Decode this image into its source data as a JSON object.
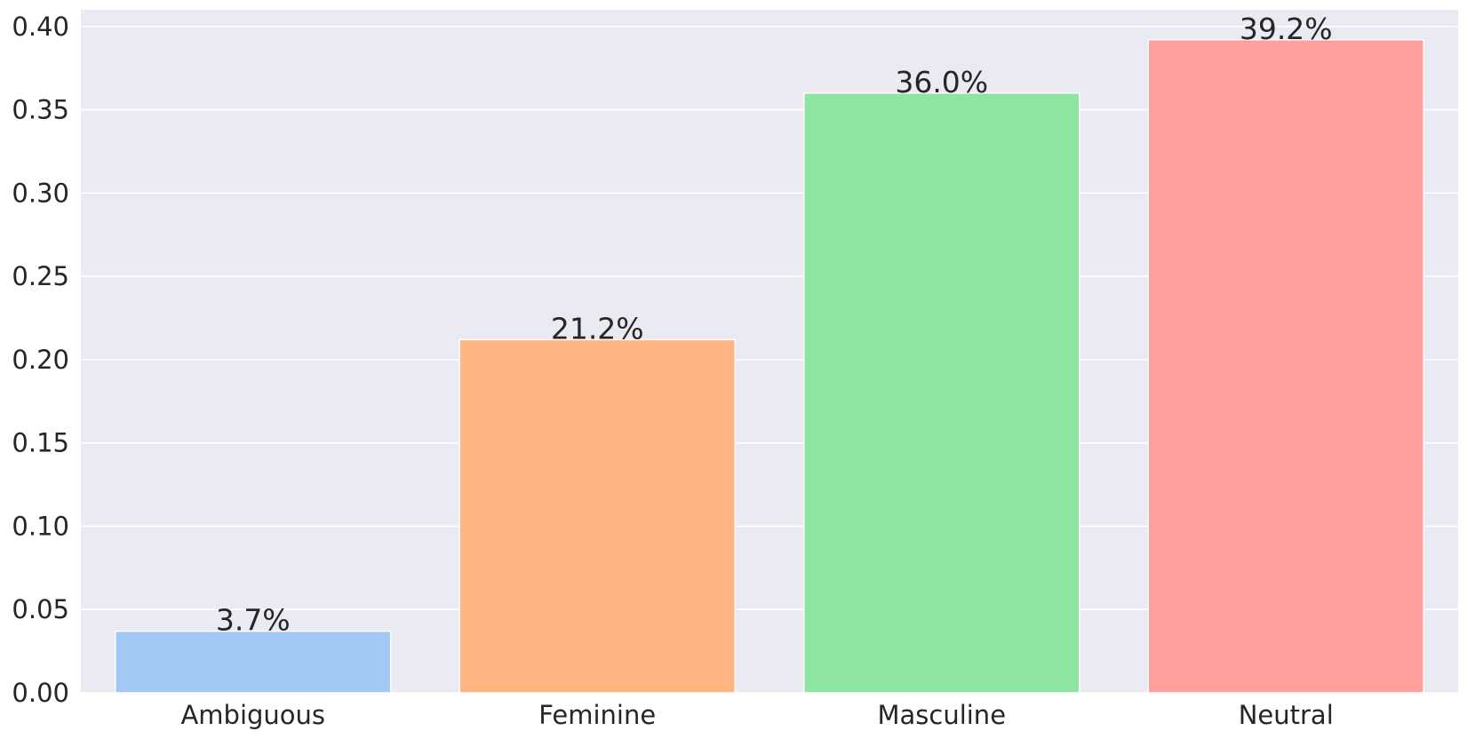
{
  "chart_data": {
    "type": "bar",
    "categories": [
      "Ambiguous",
      "Feminine",
      "Masculine",
      "Neutral"
    ],
    "values": [
      0.037,
      0.212,
      0.36,
      0.392
    ],
    "data_labels": [
      "3.7%",
      "21.2%",
      "36.0%",
      "39.2%"
    ],
    "title": "",
    "xlabel": "",
    "ylabel": "",
    "ylim": [
      0,
      0.41
    ],
    "yticks": [
      0.0,
      0.05,
      0.1,
      0.15,
      0.2,
      0.25,
      0.3,
      0.35,
      0.4
    ],
    "ytick_labels": [
      "0.00",
      "0.05",
      "0.10",
      "0.15",
      "0.20",
      "0.25",
      "0.30",
      "0.35",
      "0.40"
    ],
    "grid": true,
    "background_color": "#EAEAF2",
    "grid_color": "#FFFFFF",
    "bar_colors": [
      "#A1C9F4",
      "#FFB482",
      "#8DE5A1",
      "#FF9F9B"
    ]
  }
}
